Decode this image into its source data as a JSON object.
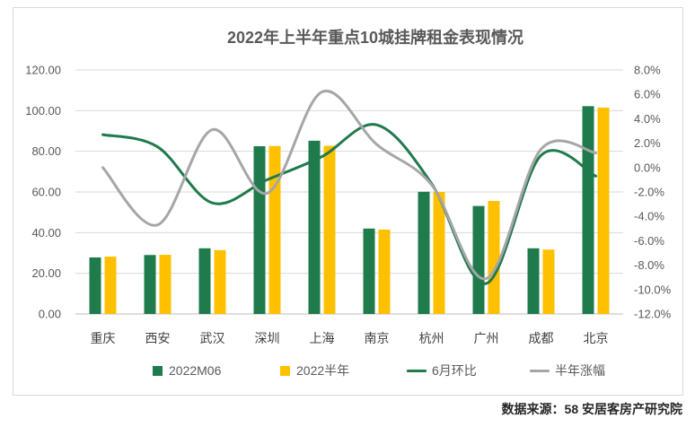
{
  "chart_data": {
    "type": "bar",
    "title": "2022年上半年重点10城挂牌租金表现情况",
    "categories": [
      "重庆",
      "西安",
      "武汉",
      "深圳",
      "上海",
      "南京",
      "杭州",
      "广州",
      "成都",
      "北京"
    ],
    "series": [
      {
        "name": "2022M06",
        "type": "bar",
        "axis": "left",
        "color": "#1f7a4c",
        "values": [
          27.8,
          29.0,
          32.3,
          82.5,
          85.2,
          42.0,
          60.1,
          53.1,
          32.3,
          102.2
        ]
      },
      {
        "name": "2022半年",
        "type": "bar",
        "axis": "left",
        "color": "#ffc000",
        "values": [
          28.2,
          29.1,
          31.4,
          82.6,
          82.7,
          41.5,
          60.0,
          55.6,
          31.7,
          101.5
        ]
      },
      {
        "name": "6月环比",
        "type": "line",
        "axis": "right",
        "color": "#1f7a4c",
        "smooth": true,
        "values": [
          2.7,
          1.7,
          -2.9,
          -1.0,
          0.9,
          3.5,
          -1.3,
          -9.5,
          1.0,
          -0.7
        ]
      },
      {
        "name": "半年涨幅",
        "type": "line",
        "axis": "right",
        "color": "#a6a6a6",
        "smooth": true,
        "values": [
          0.0,
          -4.7,
          3.1,
          -2.1,
          6.2,
          1.9,
          -1.4,
          -9.1,
          1.5,
          1.2
        ]
      }
    ],
    "y_left": {
      "range": [
        0,
        120
      ],
      "tick_labels": [
        "0.00",
        "20.00",
        "40.00",
        "60.00",
        "80.00",
        "100.00",
        "120.00"
      ]
    },
    "y_right": {
      "range": [
        -12,
        8
      ],
      "tick_labels": [
        "-12.0%",
        "-10.0%",
        "-8.0%",
        "-6.0%",
        "-4.0%",
        "-2.0%",
        "0.0%",
        "2.0%",
        "4.0%",
        "6.0%",
        "8.0%"
      ]
    },
    "grid": true,
    "legend_position": "bottom"
  },
  "source": "数据来源：58 安居客房产研究院"
}
